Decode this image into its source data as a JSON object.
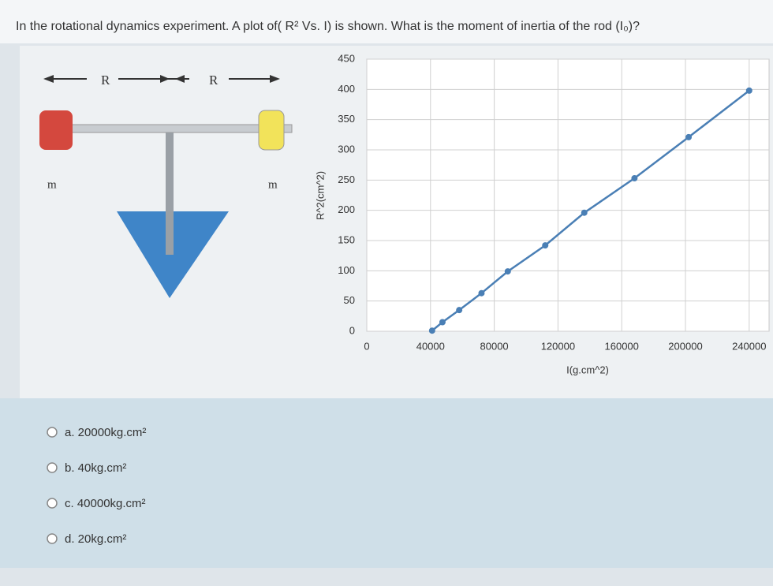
{
  "question": "In the rotational dynamics experiment. A plot of( R² Vs. I) is shown. What is the moment of inertia of the rod (I₀)?",
  "diagram": {
    "labels": [
      "R",
      "R",
      "m",
      "m"
    ]
  },
  "chart_data": {
    "type": "line",
    "x_label": "I(g.cm^2)",
    "y_label": "R^2(cm^2)",
    "x": [
      41000,
      47500,
      58000,
      72000,
      88500,
      112000,
      136500,
      168000,
      202000,
      240000
    ],
    "series": [
      {
        "color": "#4a7fb5",
        "values": [
          1,
          15,
          35,
          63,
          99,
          142,
          196,
          253,
          321,
          398
        ]
      }
    ],
    "xlim": [
      0,
      250000
    ],
    "xticks": [
      0,
      40000,
      80000,
      120000,
      160000,
      200000,
      240000
    ],
    "ylim": [
      0,
      450
    ],
    "yticks": [
      0,
      50,
      100,
      150,
      200,
      250,
      300,
      350,
      400,
      450
    ],
    "grid": true
  },
  "options": [
    "a. 20000kg.cm²",
    "b. 40kg.cm²",
    "c. 40000kg.cm²",
    "d. 20kg.cm²"
  ]
}
